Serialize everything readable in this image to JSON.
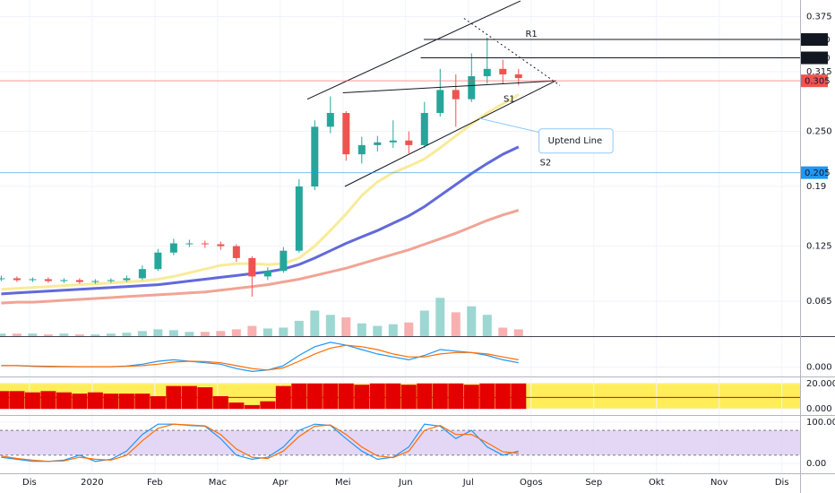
{
  "chart_data": {
    "type": "candlestick",
    "x": [
      -0.45,
      -0.2,
      0.05,
      0.3,
      0.55,
      0.8,
      1.05,
      1.3,
      1.55,
      1.8,
      2.05,
      2.3,
      2.55,
      2.8,
      3.05,
      3.3,
      3.55,
      3.8,
      4.05,
      4.3,
      4.55,
      4.8,
      5.05,
      5.3,
      5.55,
      5.8,
      6.05,
      6.3,
      6.55,
      6.8,
      7.05,
      7.3,
      7.55,
      7.8
    ],
    "open": [
      0.089,
      0.09,
      0.088,
      0.089,
      0.087,
      0.088,
      0.086,
      0.087,
      0.088,
      0.09,
      0.1,
      0.118,
      0.128,
      0.128,
      0.127,
      0.125,
      0.112,
      0.092,
      0.098,
      0.12,
      0.19,
      0.255,
      0.27,
      0.225,
      0.235,
      0.238,
      0.24,
      0.235,
      0.27,
      0.295,
      0.285,
      0.31,
      0.318,
      0.312
    ],
    "high": [
      0.093,
      0.092,
      0.091,
      0.091,
      0.09,
      0.09,
      0.089,
      0.09,
      0.093,
      0.104,
      0.122,
      0.133,
      0.132,
      0.131,
      0.13,
      0.127,
      0.114,
      0.102,
      0.124,
      0.198,
      0.262,
      0.288,
      0.272,
      0.244,
      0.245,
      0.262,
      0.25,
      0.282,
      0.318,
      0.312,
      0.335,
      0.352,
      0.328,
      0.318
    ],
    "low": [
      0.087,
      0.086,
      0.086,
      0.085,
      0.085,
      0.084,
      0.084,
      0.085,
      0.086,
      0.088,
      0.098,
      0.115,
      0.124,
      0.123,
      0.121,
      0.108,
      0.07,
      0.088,
      0.096,
      0.118,
      0.186,
      0.248,
      0.218,
      0.215,
      0.228,
      0.232,
      0.226,
      0.232,
      0.266,
      0.255,
      0.282,
      0.302,
      0.302,
      0.3
    ],
    "close": [
      0.09,
      0.088,
      0.089,
      0.087,
      0.088,
      0.086,
      0.087,
      0.088,
      0.09,
      0.1,
      0.118,
      0.128,
      0.128,
      0.127,
      0.125,
      0.112,
      0.092,
      0.098,
      0.12,
      0.19,
      0.255,
      0.27,
      0.225,
      0.235,
      0.238,
      0.24,
      0.235,
      0.27,
      0.295,
      0.285,
      0.31,
      0.318,
      0.312,
      0.308
    ],
    "up_color": "#26a69a",
    "down_color": "#ef5350",
    "xlim": [
      -0.47,
      12.29
    ],
    "xticks": [
      {
        "value": 0,
        "label": "Dis"
      },
      {
        "value": 1,
        "label": "2020"
      },
      {
        "value": 2,
        "label": "Feb"
      },
      {
        "value": 3,
        "label": "Mac"
      },
      {
        "value": 4,
        "label": "Apr"
      },
      {
        "value": 5,
        "label": "Mei"
      },
      {
        "value": 6,
        "label": "Jun"
      },
      {
        "value": 7,
        "label": "Jul"
      },
      {
        "value": 8,
        "label": "Ogos"
      },
      {
        "value": 9,
        "label": "Sep"
      },
      {
        "value": 10,
        "label": "Okt"
      },
      {
        "value": 11,
        "label": "Nov"
      },
      {
        "value": 12,
        "label": "Dis"
      }
    ],
    "ylim": [
      0.027,
      0.393
    ],
    "yticks": [
      0.375,
      0.315,
      {
        "value": 0.25,
        "label": "0.250"
      },
      0.19,
      0.125,
      0.065
    ],
    "grid": true,
    "levels": [
      {
        "value": 0.35,
        "label": "0.350",
        "color": "#131722",
        "from": 6.29
      },
      {
        "value": 0.33,
        "label": "0.330",
        "color": "#131722",
        "from": 6.24
      },
      {
        "value": 0.305,
        "label": "0.305",
        "color": "#ef5350"
      },
      {
        "value": 0.205,
        "label": "0.205",
        "color": "#2196f3"
      }
    ],
    "overlays": [
      {
        "color": "#f7e98e",
        "values": [
          0.078,
          0.079,
          0.08,
          0.081,
          0.082,
          0.083,
          0.084,
          0.085,
          0.086,
          0.087,
          0.089,
          0.092,
          0.096,
          0.1,
          0.104,
          0.106,
          0.106,
          0.105,
          0.106,
          0.112,
          0.125,
          0.142,
          0.16,
          0.18,
          0.195,
          0.205,
          0.212,
          0.22,
          0.232,
          0.245,
          0.258,
          0.27,
          0.28,
          0.29
        ]
      },
      {
        "color": "#5059d6",
        "values": [
          0.073,
          0.074,
          0.075,
          0.076,
          0.077,
          0.078,
          0.079,
          0.08,
          0.081,
          0.082,
          0.083,
          0.085,
          0.087,
          0.089,
          0.091,
          0.093,
          0.095,
          0.097,
          0.1,
          0.105,
          0.112,
          0.12,
          0.128,
          0.135,
          0.142,
          0.15,
          0.158,
          0.168,
          0.18,
          0.192,
          0.204,
          0.215,
          0.225,
          0.233
        ]
      },
      {
        "color": "#ef9a8a",
        "values": [
          0.063,
          0.064,
          0.064,
          0.065,
          0.066,
          0.067,
          0.068,
          0.069,
          0.07,
          0.071,
          0.072,
          0.073,
          0.074,
          0.075,
          0.077,
          0.079,
          0.081,
          0.083,
          0.086,
          0.089,
          0.093,
          0.097,
          0.101,
          0.106,
          0.111,
          0.116,
          0.121,
          0.127,
          0.133,
          0.139,
          0.146,
          0.153,
          0.159,
          0.164
        ]
      }
    ],
    "volume": {
      "ylim": [
        0,
        100
      ],
      "values": [
        3,
        3,
        3,
        2,
        3,
        2,
        2,
        3,
        4,
        6,
        8,
        7,
        5,
        5,
        6,
        8,
        12,
        9,
        10,
        18,
        30,
        25,
        22,
        15,
        12,
        14,
        16,
        30,
        45,
        28,
        35,
        25,
        10,
        8
      ]
    },
    "trendlines": [
      {
        "color": "#131722",
        "dashed": false,
        "points": [
          [
            4.43,
            0.285
          ],
          [
            7.83,
            0.392
          ]
        ]
      },
      {
        "color": "#131722",
        "dashed": false,
        "points": [
          [
            5.0,
            0.292
          ],
          [
            8.4,
            0.305
          ]
        ]
      },
      {
        "color": "#131722",
        "dashed": false,
        "points": [
          [
            5.03,
            0.19
          ],
          [
            8.39,
            0.305
          ]
        ]
      },
      {
        "color": "#131722",
        "dashed": true,
        "points": [
          [
            6.93,
            0.373
          ],
          [
            8.46,
            0.3
          ]
        ]
      }
    ],
    "annotations": [
      {
        "text": "R1",
        "x": 7.91,
        "y": 0.356,
        "color": "#e53935",
        "boxed": false
      },
      {
        "text": "S1",
        "x": 7.56,
        "y": 0.285,
        "color": "#e53935",
        "boxed": false
      },
      {
        "text": "S2",
        "x": 8.14,
        "y": 0.216,
        "color": "#e53935",
        "boxed": false
      },
      {
        "text": "Uptend Line",
        "x": 8.27,
        "y": 0.24,
        "color": "#131722",
        "boxed": true
      }
    ],
    "panes": [
      {
        "type": "line",
        "ylim": [
          -0.0058,
          0.02
        ],
        "yticks": [
          {
            "value": 0,
            "label": "0.000"
          }
        ],
        "series": [
          {
            "color": "#2196f3",
            "values": [
              0.001,
              0.001,
              0.0005,
              0.0003,
              0.0003,
              0.0002,
              0.0002,
              0.0003,
              0.0008,
              0.002,
              0.004,
              0.005,
              0.004,
              0.003,
              0.002,
              -0.001,
              -0.003,
              -0.002,
              0.001,
              0.008,
              0.014,
              0.017,
              0.015,
              0.012,
              0.009,
              0.007,
              0.005,
              0.008,
              0.012,
              0.011,
              0.01,
              0.008,
              0.005,
              0.003
            ]
          },
          {
            "color": "#ff6d00",
            "values": [
              0.001,
              0.001,
              0.0008,
              0.0006,
              0.0004,
              0.0003,
              0.0003,
              0.0003,
              0.0005,
              0.001,
              0.002,
              0.0035,
              0.004,
              0.0038,
              0.003,
              0.001,
              -0.001,
              -0.002,
              -0.0005,
              0.004,
              0.009,
              0.013,
              0.015,
              0.014,
              0.012,
              0.009,
              0.007,
              0.007,
              0.009,
              0.01,
              0.01,
              0.009,
              0.007,
              0.005
            ]
          }
        ]
      },
      {
        "type": "bar",
        "ylim": [
          -4.1,
          24.8
        ],
        "yticks": [
          {
            "value": 20,
            "label": "20.000"
          },
          {
            "value": 0,
            "label": "0.000"
          }
        ],
        "color": "#e50000",
        "level": 9,
        "values": [
          14,
          14,
          13,
          14,
          13,
          12,
          13,
          12,
          12,
          12,
          10,
          18,
          18,
          17,
          10,
          5,
          3,
          6,
          18,
          20,
          20,
          20,
          20,
          19,
          20,
          20,
          19,
          20,
          20,
          20,
          19,
          20,
          20,
          20
        ]
      },
      {
        "type": "line",
        "ylim": [
          -21.7,
          115
        ],
        "yticks": [
          {
            "value": 100,
            "label": "100.00"
          },
          {
            "value": 0,
            "label": "0.00"
          }
        ],
        "band": [
          20,
          80
        ],
        "series": [
          {
            "color": "#2196f3",
            "values": [
              15,
              10,
              5,
              5,
              8,
              20,
              5,
              10,
              30,
              70,
              95,
              95,
              92,
              90,
              60,
              20,
              10,
              15,
              40,
              80,
              95,
              92,
              60,
              30,
              10,
              15,
              40,
              95,
              90,
              60,
              80,
              40,
              20,
              30
            ]
          },
          {
            "color": "#ff6d00",
            "values": [
              18,
              12,
              8,
              5,
              6,
              15,
              10,
              8,
              20,
              55,
              85,
              95,
              93,
              91,
              70,
              35,
              15,
              12,
              30,
              65,
              90,
              93,
              70,
              40,
              18,
              14,
              30,
              80,
              92,
              70,
              70,
              50,
              28,
              25
            ]
          }
        ]
      }
    ]
  }
}
